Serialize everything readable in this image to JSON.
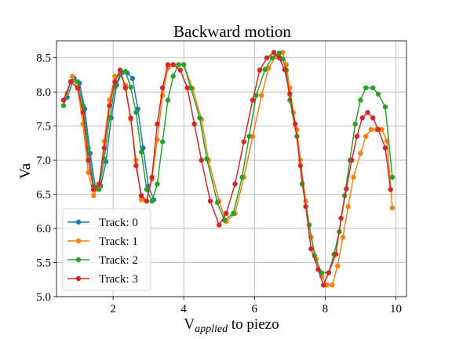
{
  "chart_data": {
    "type": "line",
    "title": "Backward motion",
    "ylabel": "Va",
    "xlabel_main": "V",
    "xlabel_sub": "applied",
    "xlabel_rest": " to piezo",
    "xlim": [
      0.4,
      10.3
    ],
    "ylim": [
      5.0,
      8.75
    ],
    "xticks": [
      2,
      4,
      6,
      8,
      10
    ],
    "yticks": [
      5.0,
      5.5,
      6.0,
      6.5,
      7.0,
      7.5,
      8.0,
      8.5
    ],
    "grid": true,
    "legend_position": "lower-left",
    "series": [
      {
        "name": "Track: 0",
        "color": "#1f77b4",
        "points": [
          [
            0.7,
            7.92
          ],
          [
            0.9,
            8.2
          ],
          [
            1.05,
            8.13
          ],
          [
            1.2,
            7.75
          ],
          [
            1.35,
            7.1
          ],
          [
            1.5,
            6.6
          ],
          [
            1.65,
            6.62
          ],
          [
            1.8,
            6.98
          ],
          [
            1.95,
            7.62
          ],
          [
            2.1,
            8.1
          ],
          [
            2.25,
            8.28
          ],
          [
            2.4,
            8.28
          ],
          [
            2.55,
            8.2
          ],
          [
            2.7,
            7.75
          ],
          [
            2.85,
            7.18
          ],
          [
            3.0,
            6.62
          ],
          [
            3.15,
            6.42
          ]
        ]
      },
      {
        "name": "Track: 1",
        "color": "#ff7f0e",
        "points": [
          [
            0.7,
            7.98
          ],
          [
            0.85,
            8.23
          ],
          [
            1.0,
            8.05
          ],
          [
            1.15,
            7.53
          ],
          [
            1.3,
            6.82
          ],
          [
            1.45,
            6.48
          ],
          [
            1.6,
            6.62
          ],
          [
            1.75,
            7.28
          ],
          [
            1.9,
            7.88
          ],
          [
            2.05,
            8.23
          ],
          [
            2.2,
            8.26
          ],
          [
            2.35,
            8.1
          ],
          [
            2.5,
            7.6
          ],
          [
            2.65,
            7.0
          ],
          [
            2.8,
            6.42
          ],
          [
            2.95,
            6.4
          ],
          [
            3.1,
            6.72
          ],
          [
            3.25,
            7.3
          ],
          [
            3.4,
            7.95
          ],
          [
            3.55,
            8.35
          ],
          [
            3.7,
            8.4
          ],
          [
            3.85,
            8.4
          ],
          [
            4.0,
            8.4
          ],
          [
            4.25,
            8.05
          ],
          [
            4.5,
            7.6
          ],
          [
            4.7,
            7.0
          ],
          [
            5.0,
            6.4
          ],
          [
            5.2,
            6.1
          ],
          [
            5.45,
            6.22
          ],
          [
            5.7,
            6.75
          ],
          [
            5.95,
            7.35
          ],
          [
            6.2,
            7.95
          ],
          [
            6.4,
            8.35
          ],
          [
            6.6,
            8.52
          ],
          [
            6.8,
            8.58
          ],
          [
            6.9,
            8.4
          ],
          [
            7.0,
            8.06
          ],
          [
            7.1,
            7.7
          ],
          [
            7.2,
            7.45
          ],
          [
            7.3,
            7.0
          ],
          [
            7.45,
            6.4
          ],
          [
            7.6,
            5.87
          ],
          [
            7.75,
            5.55
          ],
          [
            7.9,
            5.3
          ],
          [
            8.05,
            5.17
          ],
          [
            8.2,
            5.17
          ],
          [
            8.35,
            5.45
          ],
          [
            8.5,
            5.87
          ],
          [
            8.65,
            6.32
          ],
          [
            8.8,
            6.75
          ],
          [
            9.0,
            7.1
          ],
          [
            9.15,
            7.35
          ],
          [
            9.3,
            7.45
          ],
          [
            9.45,
            7.45
          ],
          [
            9.6,
            7.45
          ],
          [
            9.75,
            7.28
          ],
          [
            9.9,
            6.3
          ]
        ]
      },
      {
        "name": "Track: 2",
        "color": "#2ca02c",
        "points": [
          [
            0.6,
            7.8
          ],
          [
            0.8,
            8.15
          ],
          [
            1.0,
            8.15
          ],
          [
            1.15,
            7.8
          ],
          [
            1.3,
            7.18
          ],
          [
            1.45,
            6.62
          ],
          [
            1.6,
            6.57
          ],
          [
            1.75,
            7.02
          ],
          [
            1.9,
            7.62
          ],
          [
            2.05,
            8.07
          ],
          [
            2.2,
            8.26
          ],
          [
            2.35,
            8.3
          ],
          [
            2.5,
            8.07
          ],
          [
            2.65,
            7.7
          ],
          [
            2.8,
            7.12
          ],
          [
            2.95,
            6.57
          ],
          [
            3.1,
            6.4
          ],
          [
            3.25,
            6.65
          ],
          [
            3.4,
            7.27
          ],
          [
            3.55,
            7.88
          ],
          [
            3.7,
            8.23
          ],
          [
            3.85,
            8.4
          ],
          [
            4.0,
            8.4
          ],
          [
            4.2,
            8.06
          ],
          [
            4.45,
            7.62
          ],
          [
            4.65,
            7.02
          ],
          [
            4.95,
            6.38
          ],
          [
            5.15,
            6.12
          ],
          [
            5.4,
            6.22
          ],
          [
            5.65,
            6.75
          ],
          [
            5.85,
            7.35
          ],
          [
            6.05,
            7.95
          ],
          [
            6.3,
            8.33
          ],
          [
            6.5,
            8.5
          ],
          [
            6.7,
            8.57
          ],
          [
            6.8,
            8.48
          ],
          [
            6.9,
            8.32
          ],
          [
            7.0,
            7.88
          ],
          [
            7.2,
            7.35
          ],
          [
            7.35,
            6.65
          ],
          [
            7.55,
            6.05
          ],
          [
            7.7,
            5.6
          ],
          [
            7.9,
            5.35
          ],
          [
            8.1,
            5.35
          ],
          [
            8.25,
            5.62
          ],
          [
            8.4,
            5.95
          ],
          [
            8.55,
            6.48
          ],
          [
            8.7,
            7.0
          ],
          [
            8.85,
            7.53
          ],
          [
            9.0,
            7.88
          ],
          [
            9.15,
            8.06
          ],
          [
            9.35,
            8.06
          ],
          [
            9.5,
            7.97
          ],
          [
            9.7,
            7.78
          ],
          [
            9.9,
            6.75
          ]
        ]
      },
      {
        "name": "Track: 3",
        "color": "#d62728",
        "points": [
          [
            0.6,
            7.88
          ],
          [
            0.8,
            8.15
          ],
          [
            1.0,
            8.06
          ],
          [
            1.15,
            7.7
          ],
          [
            1.3,
            7.0
          ],
          [
            1.45,
            6.57
          ],
          [
            1.6,
            6.65
          ],
          [
            1.75,
            7.18
          ],
          [
            1.9,
            7.8
          ],
          [
            2.05,
            8.15
          ],
          [
            2.2,
            8.32
          ],
          [
            2.35,
            8.06
          ],
          [
            2.5,
            7.62
          ],
          [
            2.65,
            6.92
          ],
          [
            2.8,
            6.48
          ],
          [
            2.95,
            6.4
          ],
          [
            3.1,
            6.75
          ],
          [
            3.25,
            7.53
          ],
          [
            3.4,
            8.06
          ],
          [
            3.55,
            8.4
          ],
          [
            3.7,
            8.4
          ],
          [
            3.9,
            8.32
          ],
          [
            4.1,
            8.06
          ],
          [
            4.3,
            7.53
          ],
          [
            4.5,
            7.0
          ],
          [
            4.75,
            6.4
          ],
          [
            5.0,
            6.05
          ],
          [
            5.2,
            6.22
          ],
          [
            5.45,
            6.65
          ],
          [
            5.7,
            7.27
          ],
          [
            5.95,
            7.88
          ],
          [
            6.15,
            8.32
          ],
          [
            6.35,
            8.5
          ],
          [
            6.55,
            8.58
          ],
          [
            6.7,
            8.5
          ],
          [
            6.85,
            8.33
          ],
          [
            7.0,
            7.97
          ],
          [
            7.15,
            7.53
          ],
          [
            7.3,
            6.92
          ],
          [
            7.45,
            6.32
          ],
          [
            7.6,
            5.7
          ],
          [
            7.8,
            5.4
          ],
          [
            7.95,
            5.17
          ],
          [
            8.1,
            5.35
          ],
          [
            8.3,
            5.62
          ],
          [
            8.45,
            6.15
          ],
          [
            8.6,
            6.58
          ],
          [
            8.75,
            7.0
          ],
          [
            8.9,
            7.35
          ],
          [
            9.05,
            7.62
          ],
          [
            9.2,
            7.7
          ],
          [
            9.35,
            7.62
          ],
          [
            9.5,
            7.45
          ],
          [
            9.7,
            7.18
          ],
          [
            9.85,
            6.57
          ]
        ]
      }
    ]
  }
}
